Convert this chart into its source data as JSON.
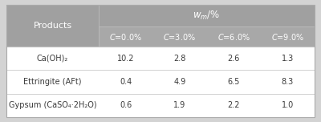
{
  "header_bg": "#a0a0a0",
  "subheader_bg": "#a8a8a8",
  "row_bg_white": "#ffffff",
  "row_bg_light": "#f5f5f5",
  "outer_bg": "#d3d3d3",
  "border_color": "#c0c0c0",
  "col1_header": "Products",
  "main_header_text": "w",
  "main_header_sub": "m",
  "main_header_suffix": "/%",
  "sub_headers": [
    "C=0.0%",
    "C=3.0%",
    "C=6.0%",
    "C=9.0%"
  ],
  "rows": [
    {
      "label": "Ca(OH)₂",
      "values": [
        "10.2",
        "2.8",
        "2.6",
        "1.3"
      ]
    },
    {
      "label": "Ettringite (AFt)",
      "values": [
        "0.4",
        "4.9",
        "6.5",
        "8.3"
      ]
    },
    {
      "label": "Gypsum (CaSO₄·2H₂O)",
      "values": [
        "0.6",
        "1.9",
        "2.2",
        "1.0"
      ]
    }
  ],
  "fig_w": 4.0,
  "fig_h": 1.52,
  "dpi": 100
}
